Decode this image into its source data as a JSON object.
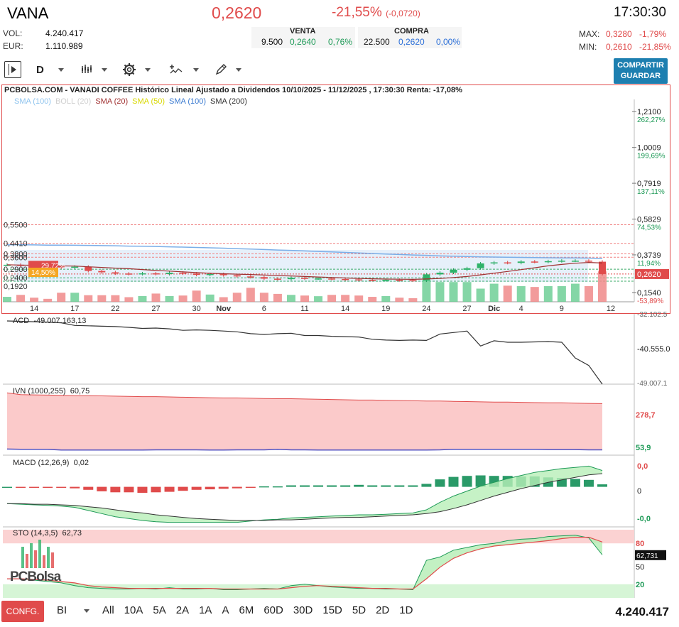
{
  "header": {
    "ticker": "VANA",
    "price": "0,2620",
    "change_pct": "-21,55%",
    "change_abs": "(-0,0720)",
    "time": "17:30:30"
  },
  "stats": {
    "vol_label": "VOL:",
    "vol_value": "4.240.417",
    "eur_label": "EUR:",
    "eur_value": "1.110.989",
    "max_label": "MAX:",
    "max_value": "0,3280",
    "max_pct": "-1,79%",
    "min_label": "MIN:",
    "min_value": "0,2610",
    "min_pct": "-21,85%"
  },
  "orderbook": {
    "venta_label": "VENTA",
    "venta_qty": "9.500",
    "venta_price": "0,2640",
    "venta_pct": "0,76%",
    "compra_label": "COMPRA",
    "compra_qty": "22.500",
    "compra_price": "0,2620",
    "compra_pct": "0,00%"
  },
  "toolbar": {
    "interval": "D",
    "share_line1": "COMPARTIR",
    "share_line2": "GUARDAR"
  },
  "chart_title": "PCBOLSA.COM - VANADI COFFEE Histórico Lineal Ajustado a Dividendos 10/10/2025 - 11/12/2025 , 17:30:30 Renta: -17,08%",
  "legend": [
    {
      "text": "SMA (100)",
      "color": "#8fc4ee"
    },
    {
      "text": "BOLL (20)",
      "color": "#cfcfcf"
    },
    {
      "text": "SMA (20)",
      "color": "#a03030"
    },
    {
      "text": "SMA (50)",
      "color": "#d8d800"
    },
    {
      "text": "SMA (100)",
      "color": "#3a7ad0"
    },
    {
      "text": "SMA (200)",
      "color": "#333333"
    }
  ],
  "price_axis_right": [
    {
      "v": "1,2100",
      "p": "262,27%"
    },
    {
      "v": "1,0009",
      "p": "199,69%"
    },
    {
      "v": "0,7919",
      "p": "137,11%"
    },
    {
      "v": "0,5829",
      "p": "74,53%"
    },
    {
      "v": "0,3739",
      "p": "11,94%"
    },
    {
      "v": "0,2620",
      "p": ""
    },
    {
      "v": "0,1540",
      "p": "-53,89%"
    }
  ],
  "price_axis_left": [
    "0,5500",
    "0,4410",
    "0,3800",
    "0,3600",
    "0,2900",
    "0,2400",
    "0,1920"
  ],
  "left_badges": [
    "29,72%",
    "14,50%"
  ],
  "x_labels": [
    "14",
    "17",
    "22",
    "27",
    "30",
    "Nov",
    "6",
    "11",
    "14",
    "19",
    "24",
    "27",
    "Dic",
    "4",
    "9",
    "12"
  ],
  "indicators": {
    "acd_label": "ACD",
    "acd_value": "-49.007.163,13",
    "acd_axis_top": "-32.102.5",
    "acd_axis_mid": "-40.555.0",
    "acd_axis_bottom": "-49.007.1",
    "ivn_label": "IVN (1000,255)",
    "ivn_value": "60,75",
    "ivn_axis_top": "278,7",
    "ivn_axis_bottom": "53,9",
    "macd_label": "MACD (12,26,9)",
    "macd_value": "0,02",
    "macd_axis_top": "0,0",
    "macd_axis_mid": "0",
    "macd_axis_bottom": "-0,0",
    "sto_label": "STO (14,3,5)",
    "sto_value": "62,73",
    "sto_axis_80": "80",
    "sto_axis_badge": "62,731",
    "sto_axis_50": "50",
    "sto_axis_20": "20",
    "watermark": "PCBolsa"
  },
  "footer": {
    "confg": "CONFG.",
    "mode": "BI",
    "periods": [
      "All",
      "10A",
      "5A",
      "2A",
      "1A",
      "A",
      "6M",
      "60D",
      "30D",
      "15D",
      "5D",
      "2D",
      "1D"
    ],
    "volume_total": "4.240.417"
  },
  "chart_data": {
    "type": "line",
    "dates": [
      "2025-10-10",
      "2025-10-13",
      "2025-10-14",
      "2025-10-15",
      "2025-10-16",
      "2025-10-17",
      "2025-10-20",
      "2025-10-21",
      "2025-10-22",
      "2025-10-23",
      "2025-10-24",
      "2025-10-27",
      "2025-10-28",
      "2025-10-29",
      "2025-10-30",
      "2025-10-31",
      "2025-11-03",
      "2025-11-04",
      "2025-11-05",
      "2025-11-06",
      "2025-11-07",
      "2025-11-10",
      "2025-11-11",
      "2025-11-12",
      "2025-11-13",
      "2025-11-14",
      "2025-11-17",
      "2025-11-18",
      "2025-11-19",
      "2025-11-20",
      "2025-11-21",
      "2025-11-24",
      "2025-11-25",
      "2025-11-26",
      "2025-11-27",
      "2025-11-28",
      "2025-12-01",
      "2025-12-02",
      "2025-12-03",
      "2025-12-04",
      "2025-12-05",
      "2025-12-08",
      "2025-12-09",
      "2025-12-10",
      "2025-12-11"
    ],
    "close": [
      0.316,
      0.313,
      0.31,
      0.308,
      0.3,
      0.305,
      0.28,
      0.272,
      0.265,
      0.262,
      0.266,
      0.262,
      0.27,
      0.265,
      0.257,
      0.262,
      0.255,
      0.248,
      0.244,
      0.235,
      0.232,
      0.24,
      0.236,
      0.236,
      0.233,
      0.231,
      0.228,
      0.227,
      0.228,
      0.226,
      0.224,
      0.26,
      0.27,
      0.287,
      0.296,
      0.324,
      0.33,
      0.327,
      0.335,
      0.333,
      0.337,
      0.34,
      0.34,
      0.334,
      0.262
    ],
    "sma100": [
      0.433,
      0.433,
      0.432,
      0.431,
      0.431,
      0.43,
      0.429,
      0.428,
      0.427,
      0.425,
      0.424,
      0.423,
      0.421,
      0.419,
      0.417,
      0.415,
      0.413,
      0.41,
      0.408,
      0.405,
      0.402,
      0.4,
      0.397,
      0.394,
      0.391,
      0.388,
      0.385,
      0.382,
      0.379,
      0.376,
      0.373,
      0.371,
      0.368,
      0.366,
      0.364,
      0.362,
      0.361,
      0.36,
      0.359,
      0.358,
      0.357,
      0.356,
      0.356,
      0.355,
      0.353
    ],
    "price_range": [
      0.1,
      1.24
    ],
    "volume": [
      30,
      42,
      25,
      18,
      55,
      55,
      40,
      40,
      40,
      28,
      35,
      50,
      35,
      38,
      68,
      44,
      28,
      55,
      85,
      55,
      48,
      42,
      38,
      34,
      42,
      42,
      38,
      30,
      35,
      25,
      22,
      130,
      120,
      120,
      120,
      80,
      110,
      98,
      95,
      90,
      95,
      95,
      110,
      95,
      185
    ],
    "acd": [
      -32.1,
      -32.2,
      -32.3,
      -32.4,
      -32.6,
      -33.3,
      -33.4,
      -33.5,
      -33.6,
      -33.8,
      -34.1,
      -34.0,
      -34.2,
      -34.6,
      -34.5,
      -34.6,
      -34.8,
      -35.0,
      -35.5,
      -35.7,
      -35.5,
      -35.4,
      -36.0,
      -36.0,
      -36.2,
      -36.3,
      -36.4,
      -37.0,
      -37.2,
      -37.3,
      -37.2,
      -37.3,
      -35.6,
      -35.2,
      -34.8,
      -38.8,
      -37.4,
      -37.8,
      -37.8,
      -37.7,
      -37.6,
      -37.8,
      -42.0,
      -44.0,
      -49.0
    ],
    "ivn_upper": [
      278.7,
      272,
      271,
      270,
      269,
      268,
      268,
      267,
      266,
      265,
      264,
      264,
      263,
      262,
      261,
      260,
      259,
      259,
      258,
      257,
      256,
      256,
      255,
      254,
      253,
      252,
      251,
      251,
      250,
      249,
      248,
      247,
      247,
      246,
      245,
      244,
      243,
      243,
      242,
      241,
      240,
      240,
      239,
      238,
      237
    ],
    "ivn_lower": [
      61,
      60,
      60,
      60,
      57,
      57,
      57,
      57,
      57,
      57,
      57,
      58,
      58,
      58,
      58,
      57,
      57,
      58,
      58,
      58,
      60,
      58,
      58,
      57,
      57,
      57,
      57,
      57,
      57,
      57,
      57,
      57,
      58,
      60,
      60,
      60,
      60,
      60,
      60,
      60,
      59,
      59,
      59,
      58,
      58
    ],
    "macd": [
      -0.02,
      -0.021,
      -0.022,
      -0.023,
      -0.024,
      -0.026,
      -0.031,
      -0.036,
      -0.041,
      -0.044,
      -0.047,
      -0.049,
      -0.05,
      -0.05,
      -0.05,
      -0.05,
      -0.05,
      -0.05,
      -0.048,
      -0.046,
      -0.045,
      -0.043,
      -0.042,
      -0.041,
      -0.04,
      -0.039,
      -0.038,
      -0.038,
      -0.037,
      -0.036,
      -0.035,
      -0.03,
      -0.018,
      -0.008,
      0.0,
      0.008,
      0.014,
      0.02,
      0.025,
      0.03,
      0.033,
      0.036,
      0.038,
      0.04,
      0.033
    ],
    "macd_signal": [
      -0.02,
      -0.02,
      -0.021,
      -0.021,
      -0.022,
      -0.023,
      -0.025,
      -0.027,
      -0.03,
      -0.033,
      -0.035,
      -0.038,
      -0.04,
      -0.042,
      -0.044,
      -0.045,
      -0.046,
      -0.047,
      -0.047,
      -0.047,
      -0.046,
      -0.046,
      -0.045,
      -0.044,
      -0.043,
      -0.042,
      -0.042,
      -0.041,
      -0.04,
      -0.039,
      -0.038,
      -0.036,
      -0.033,
      -0.028,
      -0.022,
      -0.015,
      -0.008,
      -0.002,
      0.004,
      0.009,
      0.014,
      0.018,
      0.022,
      0.026,
      0.028
    ],
    "sto_k": [
      28,
      28,
      26,
      24,
      22,
      18,
      15,
      14,
      13,
      13,
      14,
      13,
      15,
      13,
      13,
      14,
      12,
      12,
      13,
      14,
      13,
      18,
      20,
      18,
      16,
      15,
      14,
      14,
      13,
      13,
      12,
      55,
      60,
      70,
      74,
      78,
      80,
      84,
      86,
      87,
      90,
      91,
      92,
      88,
      63
    ],
    "sto_d": [
      28,
      28,
      27,
      26,
      24,
      22,
      18,
      16,
      15,
      14,
      14,
      14,
      14,
      14,
      14,
      14,
      13,
      13,
      13,
      13,
      13,
      15,
      17,
      18,
      17,
      16,
      15,
      14,
      14,
      13,
      13,
      28,
      45,
      58,
      66,
      72,
      76,
      78,
      80,
      82,
      84,
      87,
      89,
      89,
      82
    ]
  }
}
